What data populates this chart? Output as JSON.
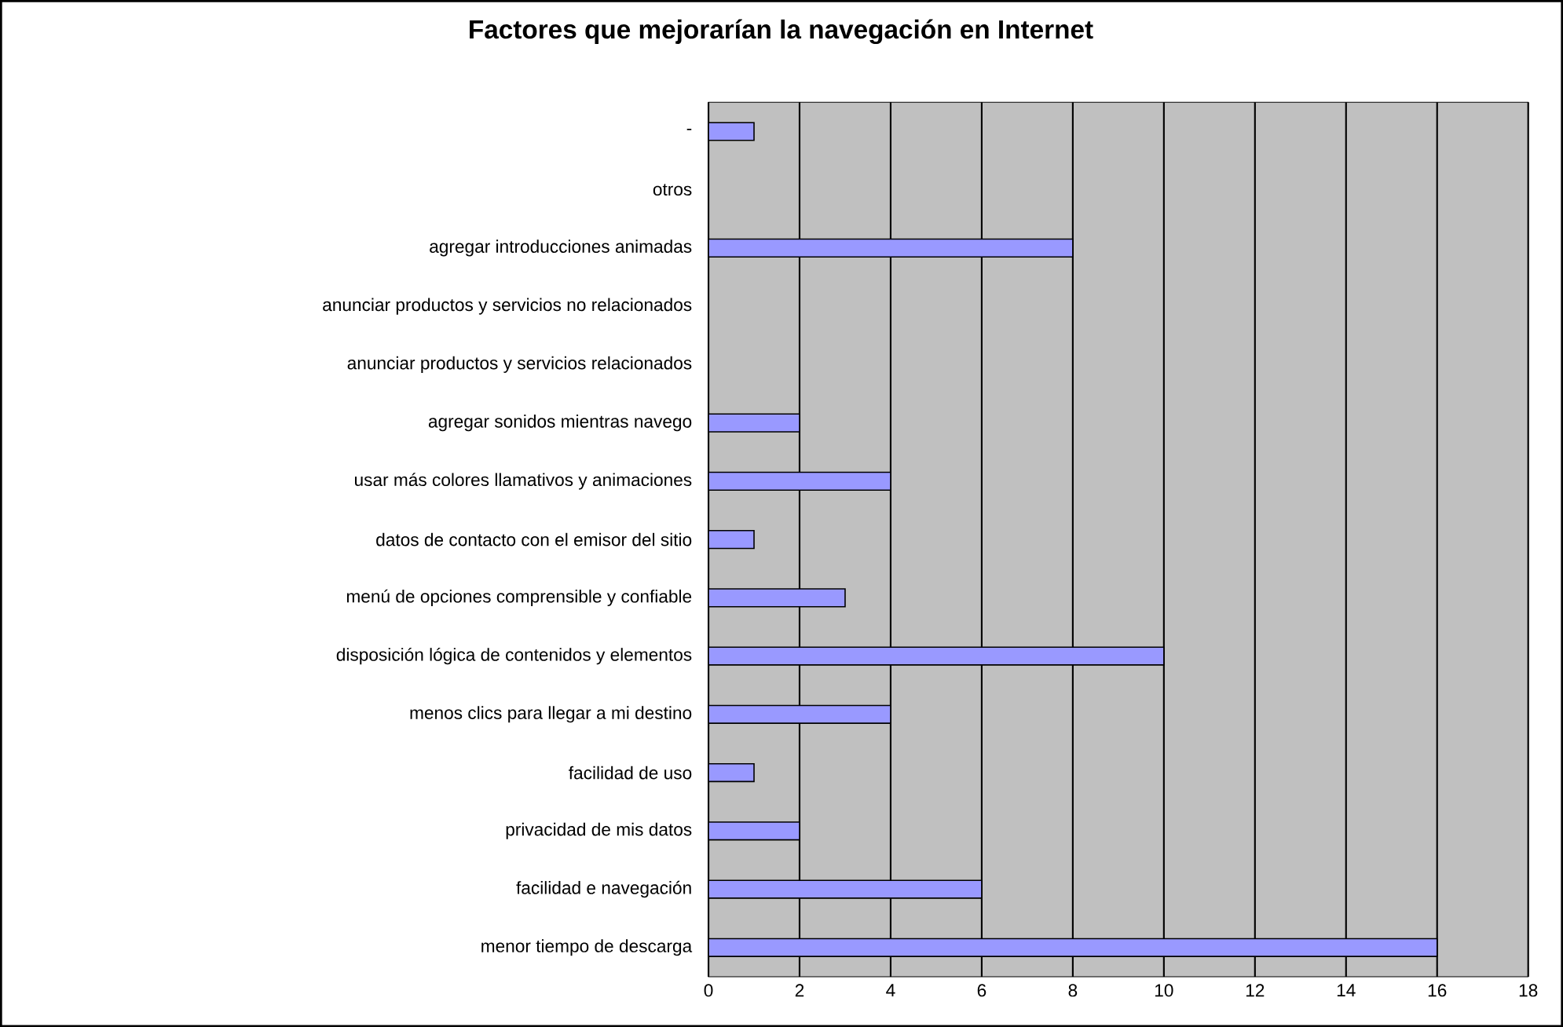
{
  "chart_data": {
    "type": "bar",
    "orientation": "horizontal",
    "title": "Factores que mejorarían la navegación en Internet",
    "categories": [
      "-",
      "otros",
      "agregar introducciones animadas",
      "anunciar productos y servicios no relacionados",
      "anunciar productos y servicios relacionados",
      "agregar sonidos mientras navego",
      "usar más colores llamativos y animaciones",
      "datos de contacto con el emisor del sitio",
      "menú de opciones comprensible y confiable",
      "disposición lógica de contenidos y elementos",
      "menos clics para llegar a mi destino",
      "facilidad de uso",
      "privacidad de mis datos",
      "facilidad e navegación",
      "menor tiempo de descarga"
    ],
    "values": [
      1,
      0,
      8,
      0,
      0,
      2,
      4,
      1,
      3,
      10,
      4,
      1,
      2,
      6,
      16
    ],
    "color": "#9999ff",
    "xlim": [
      0,
      18
    ],
    "xticks": [
      0,
      2,
      4,
      6,
      8,
      10,
      12,
      14,
      16,
      18
    ],
    "grid": "x"
  }
}
